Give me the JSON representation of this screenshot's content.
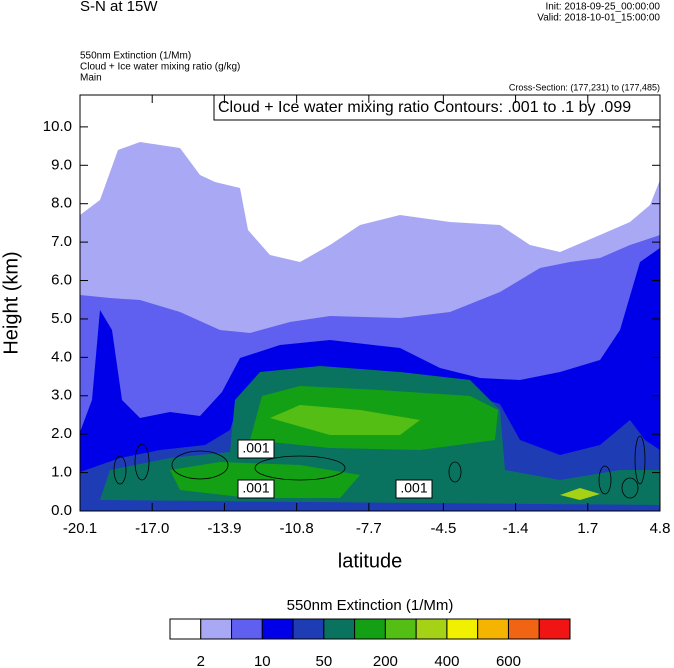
{
  "chart_data": {
    "type": "contour",
    "title": "S-N at 15W",
    "init": "Init: 2018-09-25_00:00:00",
    "valid": "Valid: 2018-10-01_15:00:00",
    "subtitles": [
      "550nm Extinction   (1/Mm)",
      "Cloud + Ice water mixing ratio   (g/kg)",
      "Main"
    ],
    "cross_section": "Cross-Section: (177,231) to (177,485)",
    "contour_info": "Cloud + Ice water mixing ratio Contours: .001 to .1 by .099",
    "x_label": "latitude",
    "y_label": "Height (km)",
    "xlim": [
      -20.1,
      4.8
    ],
    "xticks": [
      -20.1,
      {
        "value": -17,
        "label": "-17.0"
      },
      -13.9,
      -10.8,
      -7.7,
      -4.5,
      -1.4,
      1.7,
      4.8
    ],
    "ylim": [
      0,
      10.83
    ],
    "yticks": [
      {
        "value": 0,
        "label": "0.0"
      },
      {
        "value": 1,
        "label": "1.0"
      },
      {
        "value": 2,
        "label": "2.0"
      },
      {
        "value": 3,
        "label": "3.0"
      },
      {
        "value": 4,
        "label": "4.0"
      },
      {
        "value": 5,
        "label": "5.0"
      },
      {
        "value": 6,
        "label": "6.0"
      },
      {
        "value": 7,
        "label": "7.0"
      },
      {
        "value": 8,
        "label": "8.0"
      },
      {
        "value": 9,
        "label": "9.0"
      },
      {
        "value": 10,
        "label": "10.0"
      }
    ],
    "colorbar": {
      "title": "550nm Extinction  (1/Mm)",
      "colors": [
        "#ffffff",
        "#a8a8f5",
        "#5f5ff0",
        "#0000e8",
        "#1e3cb4",
        "#0a735f",
        "#14a014",
        "#55be14",
        "#a5d214",
        "#f0f000",
        "#f5b400",
        "#f06414",
        "#f01414"
      ],
      "ticks": [
        2,
        10,
        50,
        200,
        400,
        600
      ]
    },
    "contour_labels": [
      ".001",
      ".001",
      ".001"
    ]
  }
}
